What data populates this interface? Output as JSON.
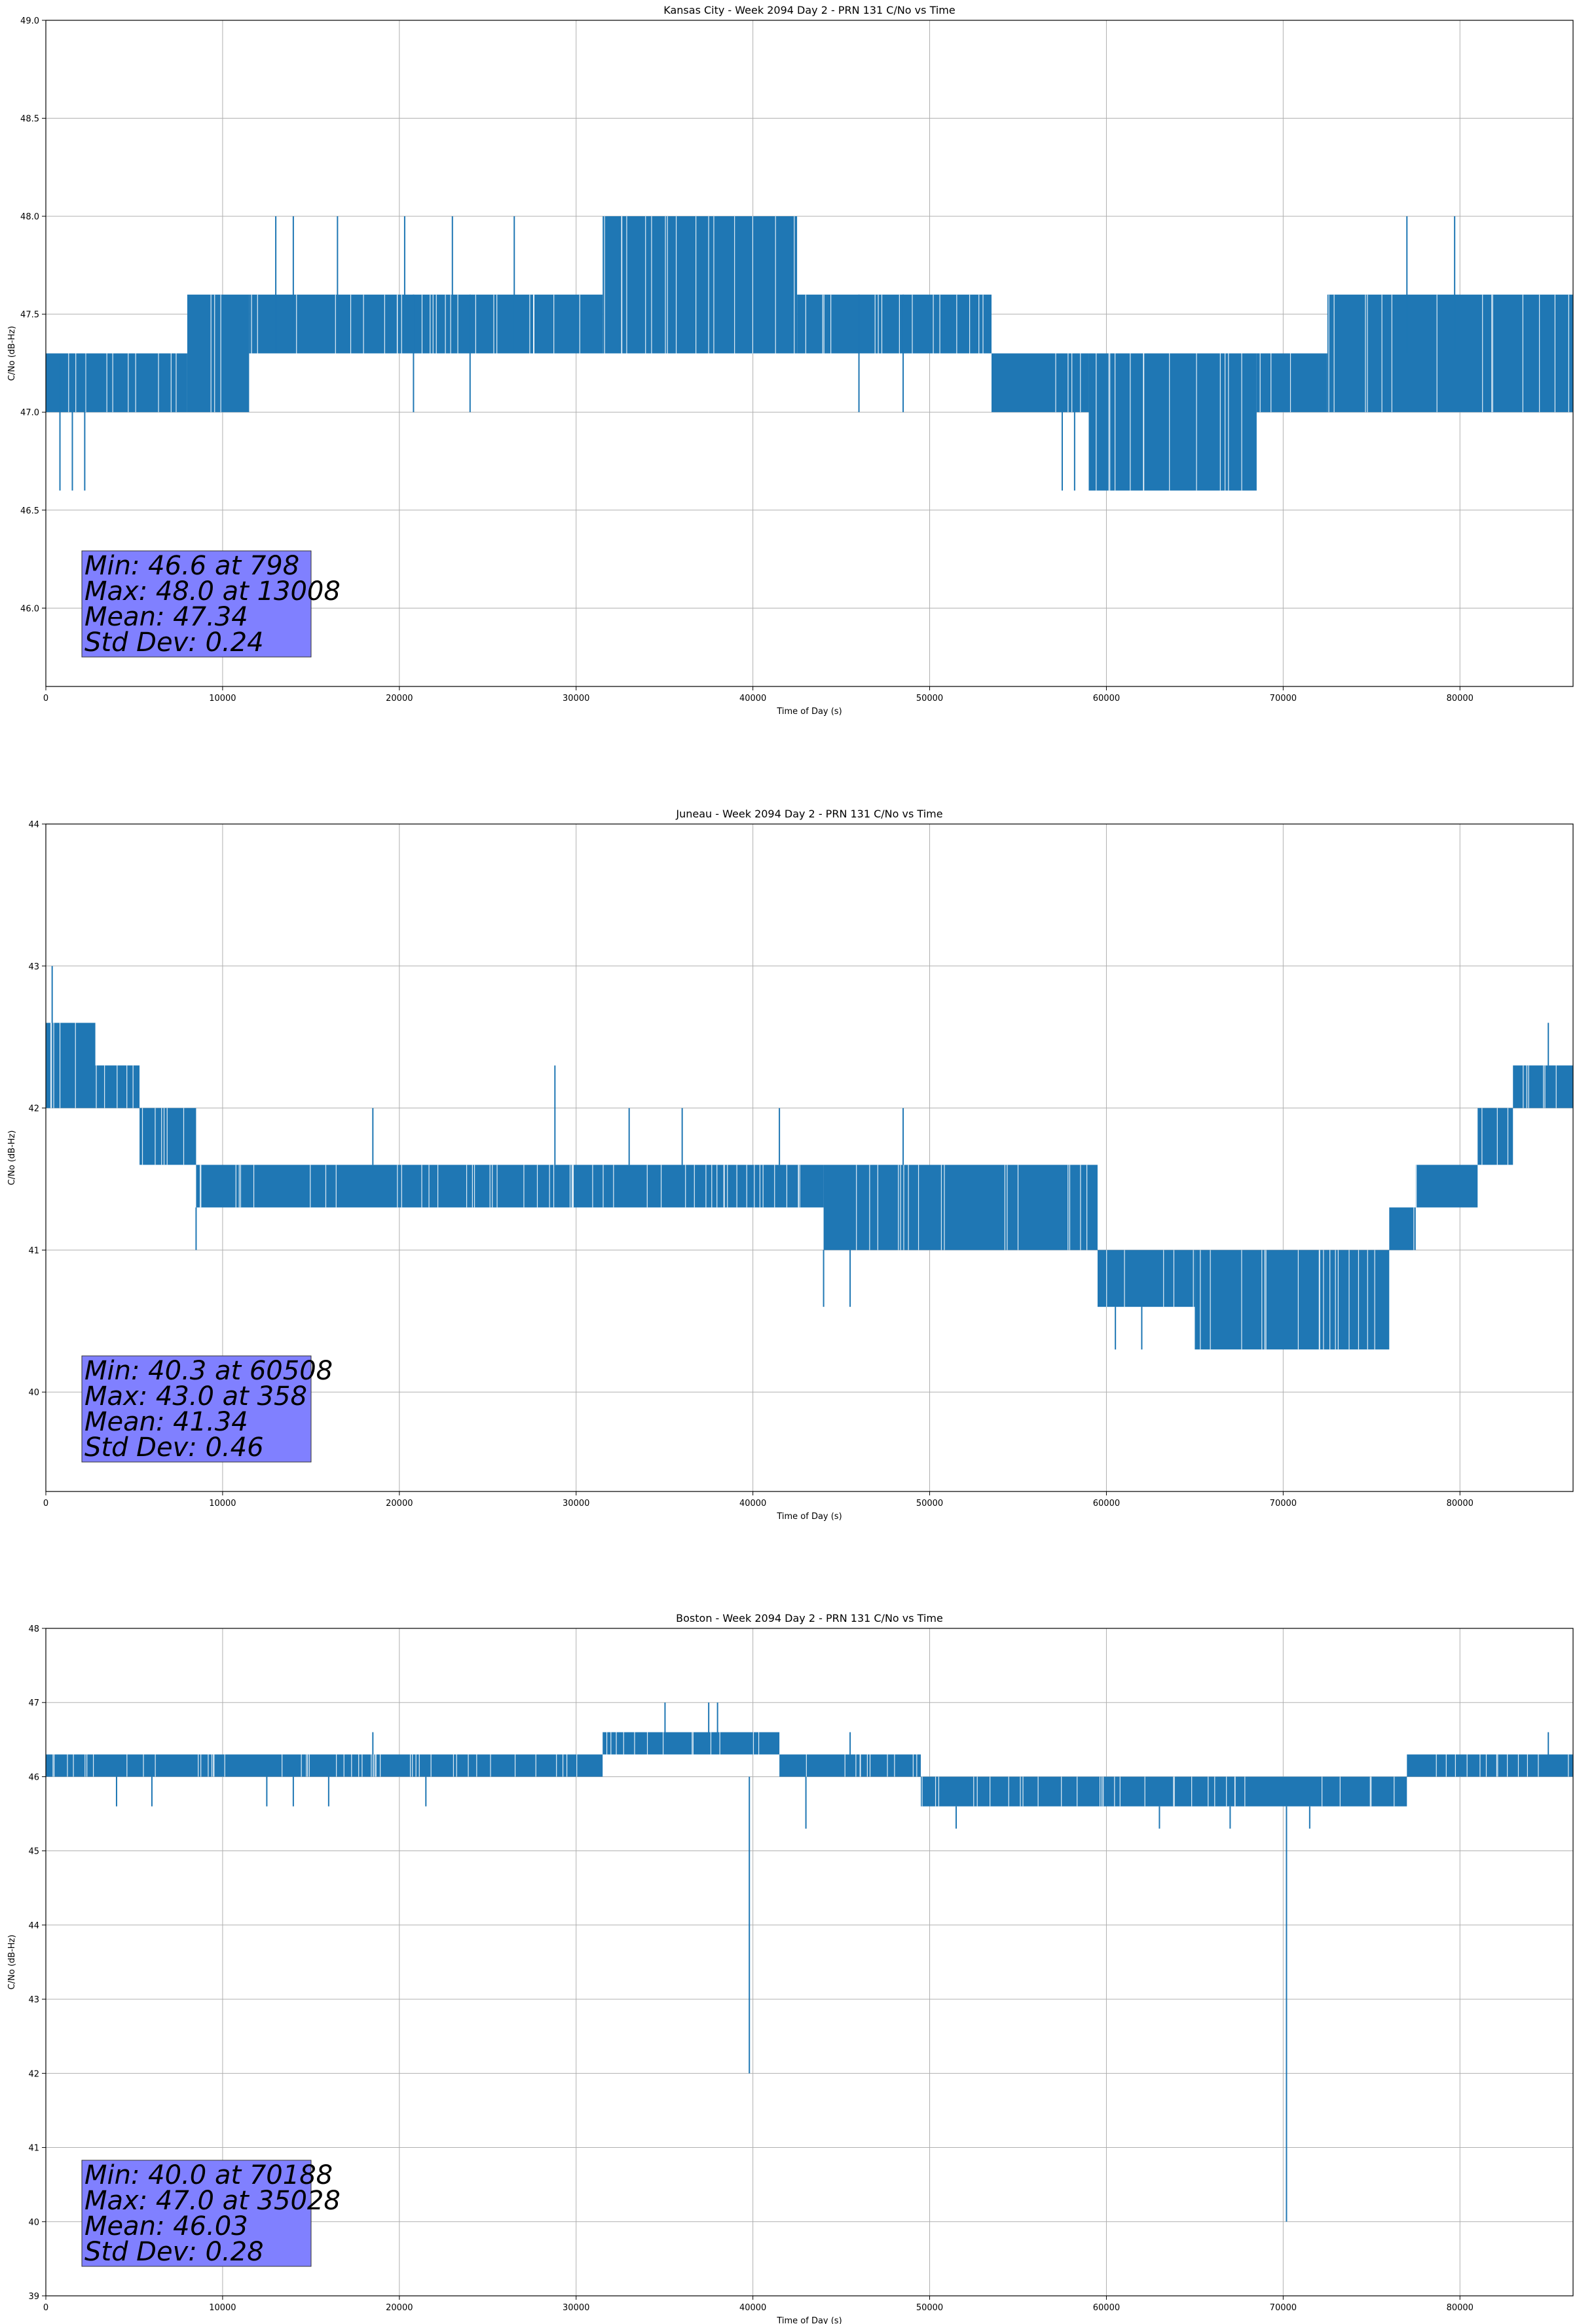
{
  "colors": {
    "series": "#1f77b4",
    "grid": "#b0b0b0",
    "stats_box": "#8080ff"
  },
  "chart_data": [
    {
      "type": "line",
      "title": "Kansas City - Week 2094 Day 2 - PRN 131 C/No vs Time",
      "xlabel": "Time of Day (s)",
      "ylabel": "C/No (dB-Hz)",
      "xlim": [
        0,
        86400
      ],
      "ylim": [
        45.6,
        49.0
      ],
      "xticks": [
        0,
        10000,
        20000,
        30000,
        40000,
        50000,
        60000,
        70000,
        80000
      ],
      "xtick_labels": [
        "0",
        "10000",
        "20000",
        "30000",
        "40000",
        "50000",
        "60000",
        "70000",
        "80000"
      ],
      "yticks": [
        46.0,
        46.5,
        47.0,
        47.5,
        48.0,
        48.5,
        49.0
      ],
      "ytick_labels": [
        "46.0",
        "46.5",
        "47.0",
        "47.5",
        "48.0",
        "48.5",
        "49.0"
      ],
      "grid": true,
      "band_segments": [
        {
          "x": [
            0,
            8000
          ],
          "lo": 47.0,
          "hi": 47.3
        },
        {
          "x": [
            8000,
            11500
          ],
          "lo": 47.0,
          "hi": 47.6
        },
        {
          "x": [
            11500,
            31500
          ],
          "lo": 47.3,
          "hi": 47.6
        },
        {
          "x": [
            31500,
            42500
          ],
          "lo": 47.3,
          "hi": 48.0
        },
        {
          "x": [
            42500,
            53500
          ],
          "lo": 47.3,
          "hi": 47.6
        },
        {
          "x": [
            53500,
            59000
          ],
          "lo": 47.0,
          "hi": 47.3
        },
        {
          "x": [
            59000,
            68500
          ],
          "lo": 46.6,
          "hi": 47.3
        },
        {
          "x": [
            68500,
            72500
          ],
          "lo": 47.0,
          "hi": 47.3
        },
        {
          "x": [
            72500,
            86400
          ],
          "lo": 47.0,
          "hi": 47.6
        }
      ],
      "spikes": [
        {
          "x": 798,
          "lo": 46.6,
          "hi": 47.3
        },
        {
          "x": 1500,
          "lo": 46.6,
          "hi": 47.3
        },
        {
          "x": 2200,
          "lo": 46.6,
          "hi": 47.3
        },
        {
          "x": 13008,
          "lo": 47.3,
          "hi": 48.0
        },
        {
          "x": 14000,
          "lo": 47.3,
          "hi": 48.0
        },
        {
          "x": 16500,
          "lo": 47.3,
          "hi": 48.0
        },
        {
          "x": 20300,
          "lo": 47.3,
          "hi": 48.0
        },
        {
          "x": 23000,
          "lo": 47.3,
          "hi": 48.0
        },
        {
          "x": 26500,
          "lo": 47.3,
          "hi": 48.0
        },
        {
          "x": 20800,
          "lo": 47.0,
          "hi": 47.6
        },
        {
          "x": 24000,
          "lo": 47.0,
          "hi": 47.6
        },
        {
          "x": 46000,
          "lo": 47.0,
          "hi": 47.6
        },
        {
          "x": 48500,
          "lo": 47.0,
          "hi": 47.6
        },
        {
          "x": 57500,
          "lo": 46.6,
          "hi": 47.3
        },
        {
          "x": 58200,
          "lo": 46.6,
          "hi": 47.3
        },
        {
          "x": 77000,
          "lo": 47.3,
          "hi": 48.0
        },
        {
          "x": 79700,
          "lo": 47.3,
          "hi": 48.0
        }
      ],
      "stats": {
        "min": "Min: 46.6 at 798",
        "max": "Max: 48.0 at 13008",
        "mean": "Mean: 47.34",
        "std": "Std Dev: 0.24"
      }
    },
    {
      "type": "line",
      "title": "Juneau - Week 2094 Day 2 - PRN 131 C/No vs Time",
      "xlabel": "Time of Day (s)",
      "ylabel": "C/No (dB-Hz)",
      "xlim": [
        0,
        86400
      ],
      "ylim": [
        39.3,
        44.0
      ],
      "xticks": [
        0,
        10000,
        20000,
        30000,
        40000,
        50000,
        60000,
        70000,
        80000
      ],
      "xtick_labels": [
        "0",
        "10000",
        "20000",
        "30000",
        "40000",
        "50000",
        "60000",
        "70000",
        "80000"
      ],
      "yticks": [
        40,
        41,
        42,
        43,
        44
      ],
      "ytick_labels": [
        "40",
        "41",
        "42",
        "43",
        "44"
      ],
      "grid": true,
      "band_segments": [
        {
          "x": [
            0,
            2800
          ],
          "lo": 42.0,
          "hi": 42.6
        },
        {
          "x": [
            2800,
            5300
          ],
          "lo": 42.0,
          "hi": 42.3
        },
        {
          "x": [
            5300,
            8500
          ],
          "lo": 41.6,
          "hi": 42.0
        },
        {
          "x": [
            8500,
            44000
          ],
          "lo": 41.3,
          "hi": 41.6
        },
        {
          "x": [
            44000,
            59500
          ],
          "lo": 41.0,
          "hi": 41.6
        },
        {
          "x": [
            59500,
            65000
          ],
          "lo": 40.6,
          "hi": 41.0
        },
        {
          "x": [
            65000,
            76000
          ],
          "lo": 40.3,
          "hi": 41.0
        },
        {
          "x": [
            76000,
            77500
          ],
          "lo": 41.0,
          "hi": 41.3
        },
        {
          "x": [
            77500,
            81000
          ],
          "lo": 41.3,
          "hi": 41.6
        },
        {
          "x": [
            81000,
            83000
          ],
          "lo": 41.6,
          "hi": 42.0
        },
        {
          "x": [
            83000,
            86400
          ],
          "lo": 42.0,
          "hi": 42.3
        }
      ],
      "spikes": [
        {
          "x": 358,
          "lo": 42.6,
          "hi": 43.0
        },
        {
          "x": 8500,
          "lo": 41.0,
          "hi": 41.3
        },
        {
          "x": 18500,
          "lo": 41.6,
          "hi": 42.0
        },
        {
          "x": 28800,
          "lo": 41.6,
          "hi": 42.3
        },
        {
          "x": 33000,
          "lo": 41.6,
          "hi": 42.0
        },
        {
          "x": 36000,
          "lo": 41.6,
          "hi": 42.0
        },
        {
          "x": 41500,
          "lo": 41.6,
          "hi": 42.0
        },
        {
          "x": 48500,
          "lo": 41.6,
          "hi": 42.0
        },
        {
          "x": 44000,
          "lo": 40.6,
          "hi": 41.0
        },
        {
          "x": 45500,
          "lo": 40.6,
          "hi": 41.0
        },
        {
          "x": 60508,
          "lo": 40.3,
          "hi": 40.6
        },
        {
          "x": 62000,
          "lo": 40.3,
          "hi": 40.6
        },
        {
          "x": 85000,
          "lo": 42.3,
          "hi": 42.6
        }
      ],
      "stats": {
        "min": "Min: 40.3 at 60508",
        "max": "Max: 43.0 at 358",
        "mean": "Mean: 41.34",
        "std": "Std Dev: 0.46"
      }
    },
    {
      "type": "line",
      "title": "Boston - Week 2094 Day 2 - PRN 131 C/No vs Time",
      "xlabel": "Time of Day (s)",
      "ylabel": "C/No (dB-Hz)",
      "xlim": [
        0,
        86400
      ],
      "ylim": [
        39,
        48
      ],
      "xticks": [
        0,
        10000,
        20000,
        30000,
        40000,
        50000,
        60000,
        70000,
        80000
      ],
      "xtick_labels": [
        "0",
        "10000",
        "20000",
        "30000",
        "40000",
        "50000",
        "60000",
        "70000",
        "80000"
      ],
      "yticks": [
        39,
        40,
        41,
        42,
        43,
        44,
        45,
        46,
        47,
        48
      ],
      "ytick_labels": [
        "39",
        "40",
        "41",
        "42",
        "43",
        "44",
        "45",
        "46",
        "47",
        "48"
      ],
      "grid": true,
      "band_segments": [
        {
          "x": [
            0,
            31500
          ],
          "lo": 46.0,
          "hi": 46.3
        },
        {
          "x": [
            31500,
            41500
          ],
          "lo": 46.3,
          "hi": 46.6
        },
        {
          "x": [
            41500,
            49500
          ],
          "lo": 46.0,
          "hi": 46.3
        },
        {
          "x": [
            49500,
            77000
          ],
          "lo": 45.6,
          "hi": 46.0
        },
        {
          "x": [
            77000,
            86400
          ],
          "lo": 46.0,
          "hi": 46.3
        }
      ],
      "spikes": [
        {
          "x": 35028,
          "lo": 46.6,
          "hi": 47.0
        },
        {
          "x": 37500,
          "lo": 46.6,
          "hi": 47.0
        },
        {
          "x": 38000,
          "lo": 46.6,
          "hi": 47.0
        },
        {
          "x": 39800,
          "lo": 42.0,
          "hi": 46.0
        },
        {
          "x": 70188,
          "lo": 40.0,
          "hi": 45.6
        },
        {
          "x": 4000,
          "lo": 45.6,
          "hi": 46.0
        },
        {
          "x": 6000,
          "lo": 45.6,
          "hi": 46.0
        },
        {
          "x": 12500,
          "lo": 45.6,
          "hi": 46.0
        },
        {
          "x": 14000,
          "lo": 45.6,
          "hi": 46.0
        },
        {
          "x": 16000,
          "lo": 45.6,
          "hi": 46.0
        },
        {
          "x": 18500,
          "lo": 46.3,
          "hi": 46.6
        },
        {
          "x": 21500,
          "lo": 45.6,
          "hi": 46.0
        },
        {
          "x": 43000,
          "lo": 45.3,
          "hi": 46.0
        },
        {
          "x": 45500,
          "lo": 46.3,
          "hi": 46.6
        },
        {
          "x": 51500,
          "lo": 45.3,
          "hi": 45.6
        },
        {
          "x": 63000,
          "lo": 45.3,
          "hi": 45.6
        },
        {
          "x": 67000,
          "lo": 45.3,
          "hi": 45.6
        },
        {
          "x": 71500,
          "lo": 45.3,
          "hi": 45.6
        },
        {
          "x": 85000,
          "lo": 46.3,
          "hi": 46.6
        }
      ],
      "stats": {
        "min": "Min: 40.0 at 70188",
        "max": "Max: 47.0 at 35028",
        "mean": "Mean: 46.03",
        "std": "Std Dev: 0.28"
      }
    }
  ]
}
